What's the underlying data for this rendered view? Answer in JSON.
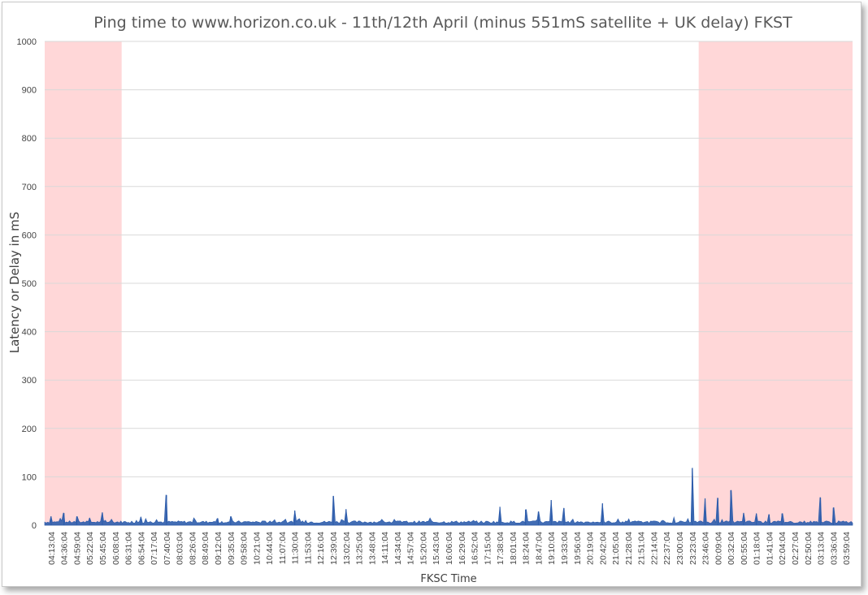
{
  "chart_data": {
    "type": "area",
    "title": "Ping time to www.horizon.co.uk  - 11th/12th April (minus 551mS satellite + UK delay) FKST",
    "xlabel": "FKSC Time",
    "ylabel": "Latency or Delay in mS",
    "ylim": [
      0,
      1000
    ],
    "ytick_labels": [
      "0",
      "100",
      "200",
      "300",
      "400",
      "500",
      "600",
      "700",
      "800",
      "900",
      "1000"
    ],
    "grid": "horizontal",
    "x_tick_labels": [
      "04:13:04",
      "04:36:04",
      "04:59:04",
      "05:22:04",
      "05:45:04",
      "06:08:04",
      "06:31:04",
      "06:54:04",
      "07:17:04",
      "07:40:04",
      "08:03:04",
      "08:26:04",
      "08:49:04",
      "09:12:04",
      "09:35:04",
      "09:58:04",
      "10:21:04",
      "10:44:04",
      "11:07:04",
      "11:30:04",
      "11:53:04",
      "12:16:04",
      "12:39:04",
      "13:02:04",
      "13:25:04",
      "13:48:04",
      "14:11:04",
      "14:34:04",
      "14:57:04",
      "15:20:04",
      "15:43:04",
      "16:06:04",
      "16:29:04",
      "16:52:04",
      "17:15:04",
      "17:38:04",
      "18:01:04",
      "18:24:04",
      "18:47:04",
      "19:10:04",
      "19:33:04",
      "19:56:04",
      "20:19:04",
      "20:42:04",
      "21:05:04",
      "21:28:04",
      "21:51:04",
      "22:14:04",
      "22:37:04",
      "23:00:04",
      "23:23:04",
      "23:46:04",
      "00:09:04",
      "00:32:04",
      "00:55:04",
      "01:18:04",
      "01:41:04",
      "02:04:04",
      "02:27:04",
      "02:50:04",
      "03:13:04",
      "03:36:04",
      "03:59:04"
    ],
    "shaded_regions": [
      {
        "from": "04:13:04",
        "to": "06:08:04",
        "color": "#ffd7d8"
      },
      {
        "from": "23:46:04",
        "to": "03:59:04",
        "color": "#ffd7d8"
      }
    ],
    "series": [
      {
        "color": "#2e5dac",
        "baseline_approx": 4,
        "spikes": [
          {
            "x": "04:13:04",
            "y": 18
          },
          {
            "x": "04:36:04",
            "y": 25
          },
          {
            "x": "04:59:04",
            "y": 18
          },
          {
            "x": "05:22:04",
            "y": 15
          },
          {
            "x": "05:45:04",
            "y": 26
          },
          {
            "x": "06:54:04",
            "y": 17
          },
          {
            "x": "07:40:04",
            "y": 62
          },
          {
            "x": "09:12:04",
            "y": 14
          },
          {
            "x": "09:35:04",
            "y": 18
          },
          {
            "x": "11:30:04",
            "y": 30
          },
          {
            "x": "12:39:04",
            "y": 60
          },
          {
            "x": "13:02:04",
            "y": 33
          },
          {
            "x": "17:38:04",
            "y": 38
          },
          {
            "x": "18:24:04",
            "y": 32
          },
          {
            "x": "18:47:04",
            "y": 28
          },
          {
            "x": "19:10:04",
            "y": 52
          },
          {
            "x": "19:33:04",
            "y": 35
          },
          {
            "x": "20:42:04",
            "y": 45
          },
          {
            "x": "23:23:04",
            "y": 118
          },
          {
            "x": "23:46:04",
            "y": 55
          },
          {
            "x": "00:09:04",
            "y": 56
          },
          {
            "x": "00:32:04",
            "y": 72
          },
          {
            "x": "00:55:04",
            "y": 25
          },
          {
            "x": "01:18:04",
            "y": 24
          },
          {
            "x": "01:41:04",
            "y": 22
          },
          {
            "x": "02:04:04",
            "y": 24
          },
          {
            "x": "03:13:04",
            "y": 57
          },
          {
            "x": "03:36:04",
            "y": 36
          }
        ]
      }
    ]
  }
}
